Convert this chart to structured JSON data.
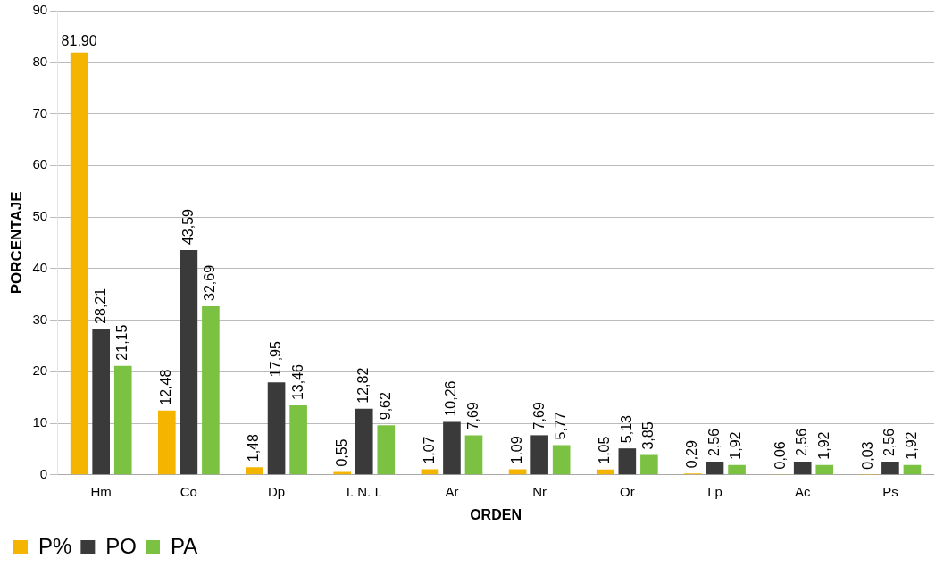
{
  "chart_data": {
    "type": "bar",
    "xlabel": "ORDEN",
    "ylabel": "PORCENTAJE",
    "categories": [
      "Hm",
      "Co",
      "Dp",
      "I. N. I.",
      "Ar",
      "Nr",
      "Or",
      "Lp",
      "Ac",
      "Ps"
    ],
    "series": [
      {
        "name": "P%",
        "color": "#f5b400",
        "values": [
          81.9,
          12.48,
          1.48,
          0.55,
          1.07,
          1.09,
          1.05,
          0.29,
          0.06,
          0.03
        ],
        "value_labels": [
          "81,90",
          "12,48",
          "1,48",
          "0,55",
          "1,07",
          "1,09",
          "1,05",
          "0,29",
          "0,06",
          "0,03"
        ]
      },
      {
        "name": "PO",
        "color": "#3a3a3a",
        "values": [
          28.21,
          43.59,
          17.95,
          12.82,
          10.26,
          7.69,
          5.13,
          2.56,
          2.56,
          2.56
        ],
        "value_labels": [
          "28,21",
          "43,59",
          "17,95",
          "12,82",
          "10,26",
          "7,69",
          "5,13",
          "2,56",
          "2,56",
          "2,56"
        ]
      },
      {
        "name": "PA",
        "color": "#7cc242",
        "values": [
          21.15,
          32.69,
          13.46,
          9.62,
          7.69,
          5.77,
          3.85,
          1.92,
          1.92,
          1.92
        ],
        "value_labels": [
          "21,15",
          "32,69",
          "13,46",
          "9,62",
          "7,69",
          "5,77",
          "3,85",
          "1,92",
          "1,92",
          "1,92"
        ]
      }
    ],
    "ylim": [
      0,
      90
    ],
    "yticks": [
      0,
      10,
      20,
      30,
      40,
      50,
      60,
      70,
      80,
      90
    ],
    "grid": "y",
    "legend": "bottom left"
  }
}
